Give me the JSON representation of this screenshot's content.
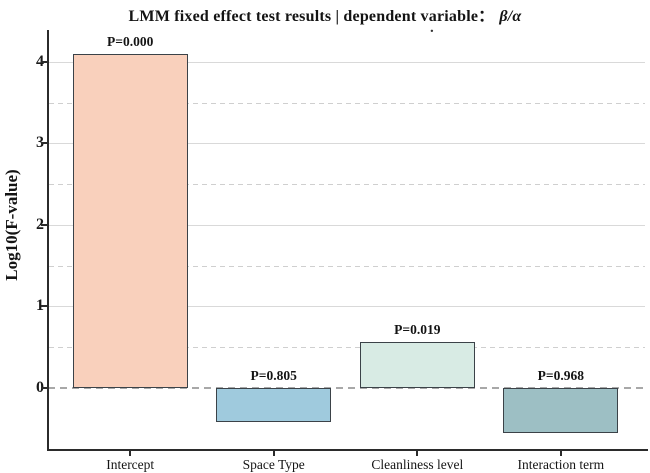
{
  "page": {
    "background": "#ffffff",
    "stray_mark": "."
  },
  "chart_data": {
    "type": "bar",
    "title": "LMM fixed effect test results | dependent variable：",
    "title_variable": "β/α",
    "ylabel": "Log10(F-value)",
    "xlabel": "",
    "categories": [
      "Intercept",
      "Space Type",
      "Cleanliness level",
      "Interaction term"
    ],
    "values": [
      4.1,
      -0.42,
      0.56,
      -0.56
    ],
    "p_value_labels": [
      "P=0.000",
      "P=0.805",
      "P=0.019",
      "P=0.968"
    ],
    "bar_colors": [
      "#f9d0bc",
      "#9fcadd",
      "#d8ebe4",
      "#9dbfc4"
    ],
    "bar_border_color": "#3b4248",
    "ylim": [
      -0.75,
      4.39
    ],
    "yticks": [
      0,
      1,
      2,
      3,
      4
    ],
    "grid": {
      "solid_lines": [
        1,
        2,
        3,
        4
      ],
      "dashed_lines": [
        0.5,
        1.5,
        2.5,
        3.5
      ],
      "zero_line_dashed": true,
      "solid_color": "#d9d9d9",
      "dashed_color": "#cfcfcf",
      "zero_color": "#a8a8a8"
    },
    "axis_color": "#2b2b2b",
    "legend": "none"
  }
}
